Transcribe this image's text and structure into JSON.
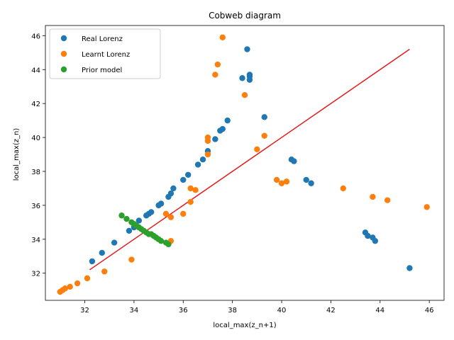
{
  "chart_data": {
    "type": "scatter",
    "title": "Cobweb diagram",
    "xlabel": "local_max(z_n+1)",
    "ylabel": "local_max(z_n)",
    "xlim": [
      30.4,
      46.6
    ],
    "ylim": [
      30.4,
      46.6
    ],
    "xticks": [
      32,
      34,
      36,
      38,
      40,
      42,
      44,
      46
    ],
    "yticks": [
      32,
      34,
      36,
      38,
      40,
      42,
      44,
      46
    ],
    "grid": false,
    "legend_position": "top-left",
    "series": [
      {
        "name": "Real Lorenz",
        "color": "#1f77b4",
        "points": [
          [
            32.3,
            32.7
          ],
          [
            32.7,
            33.2
          ],
          [
            33.2,
            33.8
          ],
          [
            33.8,
            34.5
          ],
          [
            34.0,
            34.7
          ],
          [
            34.2,
            35.1
          ],
          [
            34.5,
            35.4
          ],
          [
            34.6,
            35.5
          ],
          [
            34.7,
            35.6
          ],
          [
            35.0,
            36.0
          ],
          [
            35.1,
            36.1
          ],
          [
            35.4,
            36.5
          ],
          [
            35.5,
            36.7
          ],
          [
            35.6,
            37.0
          ],
          [
            36.0,
            37.5
          ],
          [
            36.2,
            37.8
          ],
          [
            36.6,
            38.4
          ],
          [
            36.8,
            38.7
          ],
          [
            37.0,
            39.2
          ],
          [
            37.3,
            39.9
          ],
          [
            37.5,
            40.4
          ],
          [
            37.6,
            40.5
          ],
          [
            37.8,
            41.0
          ],
          [
            38.4,
            43.5
          ],
          [
            38.7,
            43.4
          ],
          [
            38.7,
            43.6
          ],
          [
            38.7,
            43.7
          ],
          [
            38.6,
            45.2
          ],
          [
            39.3,
            41.2
          ],
          [
            40.4,
            38.7
          ],
          [
            40.5,
            38.6
          ],
          [
            41.0,
            37.5
          ],
          [
            41.2,
            37.3
          ],
          [
            43.4,
            34.4
          ],
          [
            43.5,
            34.2
          ],
          [
            43.7,
            34.1
          ],
          [
            43.8,
            33.9
          ],
          [
            45.2,
            32.3
          ]
        ]
      },
      {
        "name": "Learnt Lorenz",
        "color": "#ff7f0e",
        "points": [
          [
            31.0,
            30.9
          ],
          [
            31.1,
            31.0
          ],
          [
            31.2,
            31.1
          ],
          [
            31.4,
            31.2
          ],
          [
            31.7,
            31.4
          ],
          [
            32.1,
            31.7
          ],
          [
            32.8,
            32.1
          ],
          [
            33.9,
            32.8
          ],
          [
            35.3,
            35.5
          ],
          [
            35.5,
            35.3
          ],
          [
            35.5,
            33.9
          ],
          [
            36.0,
            35.5
          ],
          [
            36.3,
            37.0
          ],
          [
            36.3,
            36.2
          ],
          [
            36.5,
            36.9
          ],
          [
            37.0,
            39.8
          ],
          [
            37.0,
            40.0
          ],
          [
            37.0,
            39.0
          ],
          [
            37.3,
            43.7
          ],
          [
            37.4,
            44.3
          ],
          [
            37.6,
            45.9
          ],
          [
            38.5,
            42.5
          ],
          [
            39.0,
            39.3
          ],
          [
            39.3,
            40.1
          ],
          [
            39.8,
            37.5
          ],
          [
            40.0,
            37.3
          ],
          [
            40.2,
            37.4
          ],
          [
            42.5,
            37.0
          ],
          [
            43.7,
            36.5
          ],
          [
            44.3,
            36.3
          ],
          [
            45.9,
            35.9
          ]
        ]
      },
      {
        "name": "Prior model",
        "color": "#2ca02c",
        "points": [
          [
            33.5,
            35.4
          ],
          [
            33.7,
            35.2
          ],
          [
            33.9,
            35.0
          ],
          [
            34.0,
            34.9
          ],
          [
            34.1,
            34.8
          ],
          [
            34.2,
            34.7
          ],
          [
            34.3,
            34.6
          ],
          [
            34.4,
            34.5
          ],
          [
            34.5,
            34.4
          ],
          [
            34.6,
            34.3
          ],
          [
            34.7,
            34.3
          ],
          [
            34.8,
            34.2
          ],
          [
            34.9,
            34.1
          ],
          [
            35.0,
            34.0
          ],
          [
            35.1,
            33.9
          ],
          [
            35.3,
            33.8
          ],
          [
            35.4,
            33.7
          ]
        ]
      }
    ],
    "line": {
      "color": "#e31a1c",
      "from": [
        32.2,
        32.2
      ],
      "to": [
        45.2,
        45.2
      ]
    }
  }
}
